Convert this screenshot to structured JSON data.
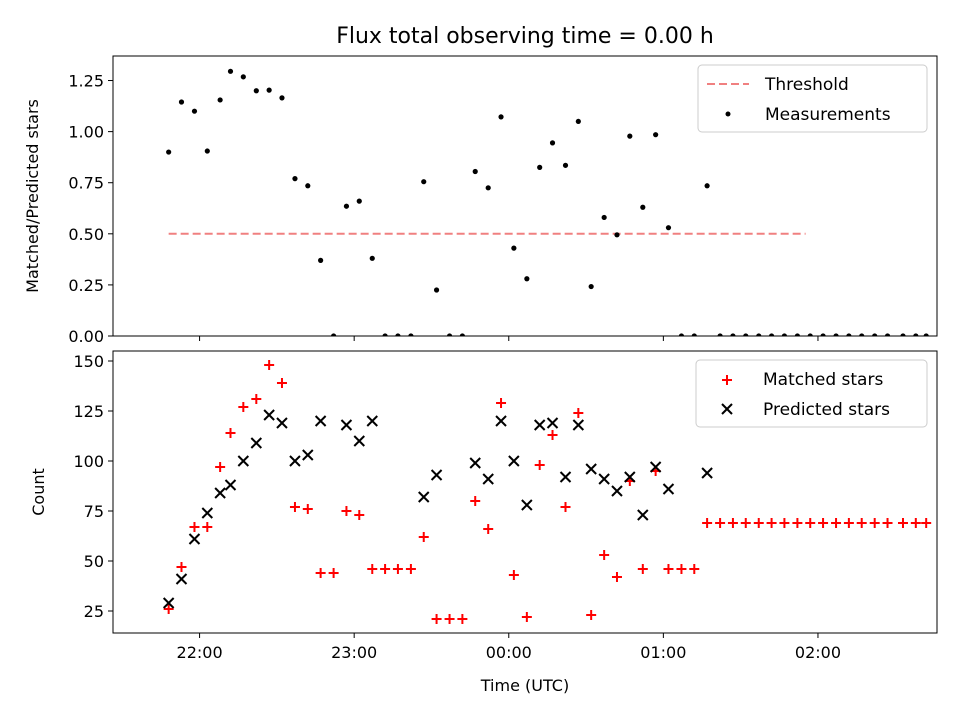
{
  "chart_data": [
    {
      "type": "scatter",
      "title": "Flux total observing time = 0.00 h",
      "ylabel": "Matched/Predicted stars",
      "xlabel": "",
      "ylim": [
        0,
        1.37
      ],
      "yticks": [
        0.0,
        0.25,
        0.5,
        0.75,
        1.0,
        1.25
      ],
      "ytick_labels": [
        "0.00",
        "0.25",
        "0.50",
        "0.75",
        "1.00",
        "1.25"
      ],
      "x_unit": "hours since 21:00 UTC",
      "xlim": [
        0.44,
        5.77
      ],
      "xticks": [
        1,
        2,
        3,
        4,
        5
      ],
      "xtick_labels": [
        "22:00",
        "23:00",
        "00:00",
        "01:00",
        "02:00"
      ],
      "legend_position": "top-right",
      "threshold": {
        "name": "Threshold",
        "value": 0.5,
        "x_range": [
          0.8,
          4.92
        ],
        "color": "#f08080"
      },
      "series": [
        {
          "name": "Measurements",
          "color": "#000000",
          "points": [
            [
              0.8,
              0.9
            ],
            [
              0.883,
              1.145
            ],
            [
              0.967,
              1.1
            ],
            [
              1.05,
              0.905
            ],
            [
              1.133,
              1.155
            ],
            [
              1.2,
              1.295
            ],
            [
              1.283,
              1.268
            ],
            [
              1.367,
              1.2
            ],
            [
              1.45,
              1.203
            ],
            [
              1.533,
              1.165
            ],
            [
              1.617,
              0.77
            ],
            [
              1.7,
              0.735
            ],
            [
              1.783,
              0.37
            ],
            [
              1.867,
              0.0
            ],
            [
              1.95,
              0.635
            ],
            [
              2.033,
              0.66
            ],
            [
              2.117,
              0.38
            ],
            [
              2.2,
              0.0
            ],
            [
              2.283,
              0.0
            ],
            [
              2.367,
              0.0
            ],
            [
              2.45,
              0.755
            ],
            [
              2.533,
              0.225
            ],
            [
              2.617,
              0.0
            ],
            [
              2.7,
              0.0
            ],
            [
              2.783,
              0.805
            ],
            [
              2.867,
              0.725
            ],
            [
              2.95,
              1.072
            ],
            [
              3.033,
              0.43
            ],
            [
              3.117,
              0.28
            ],
            [
              3.2,
              0.825
            ],
            [
              3.283,
              0.945
            ],
            [
              3.367,
              0.835
            ],
            [
              3.45,
              1.05
            ],
            [
              3.533,
              0.242
            ],
            [
              3.617,
              0.58
            ],
            [
              3.7,
              0.495
            ],
            [
              3.783,
              0.978
            ],
            [
              3.867,
              0.63
            ],
            [
              3.95,
              0.985
            ],
            [
              4.033,
              0.53
            ],
            [
              4.117,
              0.0
            ],
            [
              4.2,
              0.0
            ],
            [
              4.283,
              0.735
            ],
            [
              4.367,
              0.0
            ],
            [
              4.45,
              0.0
            ],
            [
              4.533,
              0.0
            ],
            [
              4.617,
              0.0
            ],
            [
              4.7,
              0.0
            ],
            [
              4.783,
              0.0
            ],
            [
              4.867,
              0.0
            ],
            [
              4.95,
              0.0
            ],
            [
              5.033,
              0.0
            ],
            [
              5.117,
              0.0
            ],
            [
              5.2,
              0.0
            ],
            [
              5.283,
              0.0
            ],
            [
              5.367,
              0.0
            ],
            [
              5.45,
              0.0
            ],
            [
              5.55,
              0.0
            ],
            [
              5.633,
              0.0
            ],
            [
              5.7,
              0.0
            ]
          ]
        }
      ]
    },
    {
      "type": "scatter",
      "title": "",
      "ylabel": "Count",
      "xlabel": "Time (UTC)",
      "ylim": [
        14,
        155
      ],
      "yticks": [
        25,
        50,
        75,
        100,
        125,
        150
      ],
      "ytick_labels": [
        "25",
        "50",
        "75",
        "100",
        "125",
        "150"
      ],
      "x_unit": "hours since 21:00 UTC",
      "xlim": [
        0.44,
        5.77
      ],
      "xticks": [
        1,
        2,
        3,
        4,
        5
      ],
      "xtick_labels": [
        "22:00",
        "23:00",
        "00:00",
        "01:00",
        "02:00"
      ],
      "legend_position": "top-right",
      "series": [
        {
          "name": "Matched stars",
          "marker": "plus",
          "color": "#ff0000",
          "points": [
            [
              0.8,
              26
            ],
            [
              0.883,
              47
            ],
            [
              0.967,
              67
            ],
            [
              1.05,
              67
            ],
            [
              1.133,
              97
            ],
            [
              1.2,
              114
            ],
            [
              1.283,
              127
            ],
            [
              1.367,
              131
            ],
            [
              1.45,
              148
            ],
            [
              1.533,
              139
            ],
            [
              1.617,
              77
            ],
            [
              1.7,
              76
            ],
            [
              1.783,
              44
            ],
            [
              1.867,
              44
            ],
            [
              1.95,
              75
            ],
            [
              2.033,
              73
            ],
            [
              2.117,
              46
            ],
            [
              2.2,
              46
            ],
            [
              2.283,
              46
            ],
            [
              2.367,
              46
            ],
            [
              2.45,
              62
            ],
            [
              2.533,
              21
            ],
            [
              2.617,
              21
            ],
            [
              2.7,
              21
            ],
            [
              2.783,
              80
            ],
            [
              2.867,
              66
            ],
            [
              2.95,
              129
            ],
            [
              3.033,
              43
            ],
            [
              3.117,
              22
            ],
            [
              3.2,
              98
            ],
            [
              3.283,
              113
            ],
            [
              3.367,
              77
            ],
            [
              3.45,
              124
            ],
            [
              3.533,
              23
            ],
            [
              3.617,
              53
            ],
            [
              3.7,
              42
            ],
            [
              3.783,
              90
            ],
            [
              3.867,
              46
            ],
            [
              3.95,
              95
            ],
            [
              4.033,
              46
            ],
            [
              4.117,
              46
            ],
            [
              4.2,
              46
            ],
            [
              4.283,
              69
            ],
            [
              4.367,
              69
            ],
            [
              4.45,
              69
            ],
            [
              4.533,
              69
            ],
            [
              4.617,
              69
            ],
            [
              4.7,
              69
            ],
            [
              4.783,
              69
            ],
            [
              4.867,
              69
            ],
            [
              4.95,
              69
            ],
            [
              5.033,
              69
            ],
            [
              5.117,
              69
            ],
            [
              5.2,
              69
            ],
            [
              5.283,
              69
            ],
            [
              5.367,
              69
            ],
            [
              5.45,
              69
            ],
            [
              5.55,
              69
            ],
            [
              5.633,
              69
            ],
            [
              5.7,
              69
            ]
          ]
        },
        {
          "name": "Predicted stars",
          "marker": "x",
          "color": "#000000",
          "points": [
            [
              0.8,
              29
            ],
            [
              0.883,
              41
            ],
            [
              0.967,
              61
            ],
            [
              1.05,
              74
            ],
            [
              1.133,
              84
            ],
            [
              1.2,
              88
            ],
            [
              1.283,
              100
            ],
            [
              1.367,
              109
            ],
            [
              1.45,
              123
            ],
            [
              1.533,
              119
            ],
            [
              1.617,
              100
            ],
            [
              1.7,
              103
            ],
            [
              1.783,
              120
            ],
            [
              1.95,
              118
            ],
            [
              2.033,
              110
            ],
            [
              2.117,
              120
            ],
            [
              2.45,
              82
            ],
            [
              2.533,
              93
            ],
            [
              2.783,
              99
            ],
            [
              2.867,
              91
            ],
            [
              2.95,
              120
            ],
            [
              3.033,
              100
            ],
            [
              3.117,
              78
            ],
            [
              3.2,
              118
            ],
            [
              3.283,
              119
            ],
            [
              3.367,
              92
            ],
            [
              3.45,
              118
            ],
            [
              3.533,
              96
            ],
            [
              3.617,
              91
            ],
            [
              3.7,
              85
            ],
            [
              3.783,
              92
            ],
            [
              3.867,
              73
            ],
            [
              3.95,
              97
            ],
            [
              4.033,
              86
            ],
            [
              4.283,
              94
            ]
          ]
        }
      ]
    }
  ]
}
